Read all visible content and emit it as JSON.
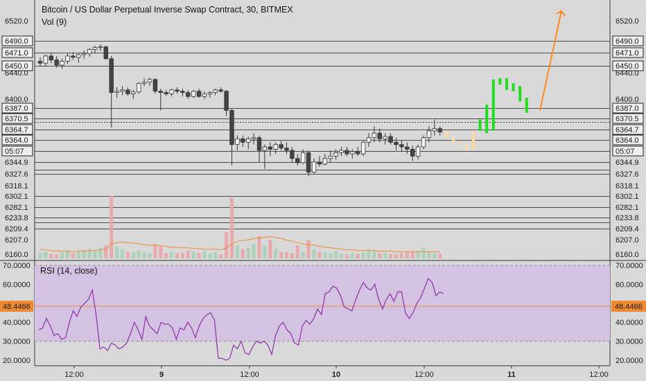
{
  "header": {
    "title": "Bitcoin / US Dollar Perpetual Inverse Swap Contract, 30, BITMEX",
    "volume_label": "Vol (9)",
    "rsi_label": "RSI (14, close)"
  },
  "chart_data": [
    {
      "type": "candlestick",
      "title": "Bitcoin / US Dollar Perpetual Inverse Swap Contract, 30, BITMEX",
      "x_ticks": [
        "12:00",
        "9",
        "12:00",
        "10",
        "12:00",
        "11",
        "12:00"
      ],
      "price_axis_labels": [
        "6520.0",
        "6490.0",
        "6471.0",
        "6450.0",
        "6440.0",
        "6400.0",
        "6387.0",
        "6370.5",
        "6364.7",
        "6364.0",
        "05:07",
        "6344.9",
        "6327.6",
        "6318.1",
        "6302.1",
        "6282.1",
        "6233.8",
        "6209.4",
        "6207.0",
        "6160.0"
      ],
      "horizontal_levels": [
        6490.0,
        6471.0,
        6450.0,
        6387.0,
        6370.5,
        6364.7,
        6364.0,
        6344.9,
        6327.6,
        6302.1,
        6282.1,
        6233.8,
        6209.4
      ],
      "current_price": 6370.5,
      "countdown": "05:07",
      "candles": [
        {
          "o": 6458,
          "h": 6464,
          "l": 6450,
          "c": 6455
        },
        {
          "o": 6455,
          "h": 6468,
          "l": 6450,
          "c": 6466
        },
        {
          "o": 6466,
          "h": 6470,
          "l": 6455,
          "c": 6460
        },
        {
          "o": 6460,
          "h": 6466,
          "l": 6448,
          "c": 6452
        },
        {
          "o": 6452,
          "h": 6462,
          "l": 6446,
          "c": 6458
        },
        {
          "o": 6458,
          "h": 6470,
          "l": 6454,
          "c": 6466
        },
        {
          "o": 6466,
          "h": 6472,
          "l": 6460,
          "c": 6464
        },
        {
          "o": 6464,
          "h": 6470,
          "l": 6456,
          "c": 6468
        },
        {
          "o": 6468,
          "h": 6474,
          "l": 6462,
          "c": 6470
        },
        {
          "o": 6470,
          "h": 6478,
          "l": 6465,
          "c": 6476
        },
        {
          "o": 6476,
          "h": 6482,
          "l": 6470,
          "c": 6479
        },
        {
          "o": 6479,
          "h": 6484,
          "l": 6474,
          "c": 6480
        },
        {
          "o": 6480,
          "h": 6482,
          "l": 6460,
          "c": 6462
        },
        {
          "o": 6462,
          "h": 6466,
          "l": 6375,
          "c": 6410
        },
        {
          "o": 6410,
          "h": 6418,
          "l": 6402,
          "c": 6412
        },
        {
          "o": 6412,
          "h": 6420,
          "l": 6406,
          "c": 6414
        },
        {
          "o": 6414,
          "h": 6418,
          "l": 6405,
          "c": 6408
        },
        {
          "o": 6408,
          "h": 6414,
          "l": 6400,
          "c": 6411
        },
        {
          "o": 6411,
          "h": 6426,
          "l": 6408,
          "c": 6424
        },
        {
          "o": 6424,
          "h": 6432,
          "l": 6420,
          "c": 6426
        },
        {
          "o": 6426,
          "h": 6433,
          "l": 6420,
          "c": 6430
        },
        {
          "o": 6430,
          "h": 6432,
          "l": 6408,
          "c": 6412
        },
        {
          "o": 6412,
          "h": 6416,
          "l": 6390,
          "c": 6410
        },
        {
          "o": 6410,
          "h": 6414,
          "l": 6405,
          "c": 6408
        },
        {
          "o": 6408,
          "h": 6416,
          "l": 6404,
          "c": 6414
        },
        {
          "o": 6414,
          "h": 6418,
          "l": 6408,
          "c": 6412
        },
        {
          "o": 6412,
          "h": 6416,
          "l": 6404,
          "c": 6410
        },
        {
          "o": 6410,
          "h": 6414,
          "l": 6400,
          "c": 6404
        },
        {
          "o": 6404,
          "h": 6414,
          "l": 6402,
          "c": 6412
        },
        {
          "o": 6412,
          "h": 6416,
          "l": 6402,
          "c": 6404
        },
        {
          "o": 6404,
          "h": 6412,
          "l": 6400,
          "c": 6408
        },
        {
          "o": 6408,
          "h": 6412,
          "l": 6402,
          "c": 6410
        },
        {
          "o": 6410,
          "h": 6416,
          "l": 6406,
          "c": 6414
        },
        {
          "o": 6414,
          "h": 6418,
          "l": 6410,
          "c": 6412
        },
        {
          "o": 6412,
          "h": 6414,
          "l": 6385,
          "c": 6390
        },
        {
          "o": 6390,
          "h": 6392,
          "l": 6340,
          "c": 6360
        },
        {
          "o": 6360,
          "h": 6368,
          "l": 6355,
          "c": 6365
        },
        {
          "o": 6365,
          "h": 6368,
          "l": 6358,
          "c": 6362
        },
        {
          "o": 6362,
          "h": 6367,
          "l": 6356,
          "c": 6365
        },
        {
          "o": 6365,
          "h": 6370,
          "l": 6360,
          "c": 6366
        },
        {
          "o": 6366,
          "h": 6368,
          "l": 6345,
          "c": 6355
        },
        {
          "o": 6355,
          "h": 6360,
          "l": 6335,
          "c": 6358
        },
        {
          "o": 6358,
          "h": 6362,
          "l": 6350,
          "c": 6356
        },
        {
          "o": 6356,
          "h": 6362,
          "l": 6352,
          "c": 6360
        },
        {
          "o": 6360,
          "h": 6363,
          "l": 6355,
          "c": 6357
        },
        {
          "o": 6357,
          "h": 6362,
          "l": 6352,
          "c": 6355
        },
        {
          "o": 6355,
          "h": 6358,
          "l": 6345,
          "c": 6348
        },
        {
          "o": 6348,
          "h": 6352,
          "l": 6340,
          "c": 6344
        },
        {
          "o": 6344,
          "h": 6356,
          "l": 6342,
          "c": 6353
        },
        {
          "o": 6353,
          "h": 6355,
          "l": 6325,
          "c": 6330
        },
        {
          "o": 6330,
          "h": 6348,
          "l": 6328,
          "c": 6345
        },
        {
          "o": 6345,
          "h": 6350,
          "l": 6338,
          "c": 6342
        },
        {
          "o": 6342,
          "h": 6352,
          "l": 6340,
          "c": 6348
        },
        {
          "o": 6348,
          "h": 6355,
          "l": 6345,
          "c": 6350
        },
        {
          "o": 6350,
          "h": 6356,
          "l": 6347,
          "c": 6353
        },
        {
          "o": 6353,
          "h": 6358,
          "l": 6350,
          "c": 6355
        },
        {
          "o": 6355,
          "h": 6358,
          "l": 6350,
          "c": 6352
        },
        {
          "o": 6352,
          "h": 6356,
          "l": 6348,
          "c": 6354
        },
        {
          "o": 6354,
          "h": 6358,
          "l": 6350,
          "c": 6352
        },
        {
          "o": 6352,
          "h": 6364,
          "l": 6350,
          "c": 6362
        },
        {
          "o": 6362,
          "h": 6370,
          "l": 6358,
          "c": 6366
        },
        {
          "o": 6366,
          "h": 6376,
          "l": 6362,
          "c": 6370
        },
        {
          "o": 6370,
          "h": 6374,
          "l": 6362,
          "c": 6365
        },
        {
          "o": 6365,
          "h": 6370,
          "l": 6360,
          "c": 6367
        },
        {
          "o": 6367,
          "h": 6370,
          "l": 6360,
          "c": 6362
        },
        {
          "o": 6362,
          "h": 6366,
          "l": 6355,
          "c": 6360
        },
        {
          "o": 6360,
          "h": 6364,
          "l": 6354,
          "c": 6358
        },
        {
          "o": 6358,
          "h": 6362,
          "l": 6352,
          "c": 6356
        },
        {
          "o": 6356,
          "h": 6359,
          "l": 6346,
          "c": 6350
        },
        {
          "o": 6350,
          "h": 6360,
          "l": 6347,
          "c": 6358
        },
        {
          "o": 6358,
          "h": 6368,
          "l": 6356,
          "c": 6366
        },
        {
          "o": 6366,
          "h": 6376,
          "l": 6362,
          "c": 6372
        },
        {
          "o": 6372,
          "h": 6382,
          "l": 6368,
          "c": 6374
        },
        {
          "o": 6374,
          "h": 6376,
          "l": 6368,
          "c": 6371
        }
      ],
      "projection_bars": [
        {
          "o": 6372,
          "h": 6374,
          "l": 6364,
          "c": 6366,
          "color": "#ffd9a0"
        },
        {
          "o": 6366,
          "h": 6370,
          "l": 6360,
          "c": 6362,
          "color": "#ffd9a0"
        },
        {
          "o": 6362,
          "h": 6368,
          "l": 6356,
          "c": 6360,
          "color": "#ffd9a0"
        },
        {
          "o": 6360,
          "h": 6366,
          "l": 6352,
          "c": 6355,
          "color": "#ffd9a0"
        },
        {
          "o": 6356,
          "h": 6375,
          "l": 6355,
          "c": 6372,
          "color": "#ffd9a0"
        },
        {
          "o": 6372,
          "h": 6385,
          "l": 6370,
          "c": 6382,
          "color": "#22dd22"
        },
        {
          "o": 6370,
          "h": 6398,
          "l": 6370,
          "c": 6395,
          "color": "#22dd22"
        },
        {
          "o": 6372,
          "h": 6433,
          "l": 6370,
          "c": 6430,
          "color": "#22dd22"
        },
        {
          "o": 6432,
          "h": 6432,
          "l": 6420,
          "c": 6422,
          "color": "#22dd22"
        },
        {
          "o": 6432,
          "h": 6432,
          "l": 6412,
          "c": 6414,
          "color": "#22dd22"
        },
        {
          "o": 6424,
          "h": 6424,
          "l": 6410,
          "c": 6412,
          "color": "#22dd22"
        },
        {
          "o": 6420,
          "h": 6420,
          "l": 6396,
          "c": 6398,
          "color": "#22dd22"
        },
        {
          "o": 6402,
          "h": 6402,
          "l": 6386,
          "c": 6388,
          "color": "#22dd22"
        }
      ],
      "arrow": {
        "from_price": 6390,
        "to_price": 6535,
        "color": "#ff8c1a"
      },
      "volume": [
        {
          "v": 8,
          "up": true
        },
        {
          "v": 10,
          "up": true
        },
        {
          "v": 7,
          "up": false
        },
        {
          "v": 6,
          "up": false
        },
        {
          "v": 9,
          "up": true
        },
        {
          "v": 12,
          "up": true
        },
        {
          "v": 8,
          "up": false
        },
        {
          "v": 10,
          "up": true
        },
        {
          "v": 12,
          "up": true
        },
        {
          "v": 14,
          "up": true
        },
        {
          "v": 11,
          "up": true
        },
        {
          "v": 16,
          "up": true
        },
        {
          "v": 20,
          "up": false
        },
        {
          "v": 95,
          "up": false
        },
        {
          "v": 18,
          "up": true
        },
        {
          "v": 14,
          "up": true
        },
        {
          "v": 10,
          "up": false
        },
        {
          "v": 9,
          "up": true
        },
        {
          "v": 12,
          "up": true
        },
        {
          "v": 10,
          "up": true
        },
        {
          "v": 8,
          "up": true
        },
        {
          "v": 22,
          "up": false
        },
        {
          "v": 18,
          "up": false
        },
        {
          "v": 8,
          "up": false
        },
        {
          "v": 10,
          "up": true
        },
        {
          "v": 8,
          "up": false
        },
        {
          "v": 9,
          "up": false
        },
        {
          "v": 12,
          "up": false
        },
        {
          "v": 10,
          "up": true
        },
        {
          "v": 8,
          "up": false
        },
        {
          "v": 11,
          "up": true
        },
        {
          "v": 7,
          "up": true
        },
        {
          "v": 9,
          "up": true
        },
        {
          "v": 6,
          "up": false
        },
        {
          "v": 40,
          "up": false
        },
        {
          "v": 92,
          "up": false
        },
        {
          "v": 20,
          "up": true
        },
        {
          "v": 14,
          "up": false
        },
        {
          "v": 16,
          "up": true
        },
        {
          "v": 22,
          "up": true
        },
        {
          "v": 34,
          "up": false
        },
        {
          "v": 20,
          "up": true
        },
        {
          "v": 28,
          "up": false
        },
        {
          "v": 14,
          "up": true
        },
        {
          "v": 10,
          "up": false
        },
        {
          "v": 9,
          "up": false
        },
        {
          "v": 8,
          "up": false
        },
        {
          "v": 20,
          "up": false
        },
        {
          "v": 10,
          "up": true
        },
        {
          "v": 28,
          "up": false
        },
        {
          "v": 14,
          "up": true
        },
        {
          "v": 10,
          "up": false
        },
        {
          "v": 9,
          "up": true
        },
        {
          "v": 8,
          "up": true
        },
        {
          "v": 11,
          "up": true
        },
        {
          "v": 7,
          "up": true
        },
        {
          "v": 6,
          "up": false
        },
        {
          "v": 8,
          "up": true
        },
        {
          "v": 7,
          "up": false
        },
        {
          "v": 10,
          "up": true
        },
        {
          "v": 14,
          "up": true
        },
        {
          "v": 12,
          "up": true
        },
        {
          "v": 8,
          "up": false
        },
        {
          "v": 9,
          "up": true
        },
        {
          "v": 7,
          "up": false
        },
        {
          "v": 6,
          "up": false
        },
        {
          "v": 8,
          "up": false
        },
        {
          "v": 9,
          "up": false
        },
        {
          "v": 10,
          "up": false
        },
        {
          "v": 12,
          "up": true
        },
        {
          "v": 16,
          "up": true
        },
        {
          "v": 10,
          "up": true
        },
        {
          "v": 8,
          "up": true
        },
        {
          "v": 7,
          "up": false
        }
      ],
      "volume_ma": [
        14,
        13,
        12,
        11,
        11,
        11,
        10,
        11,
        11,
        12,
        12,
        13,
        14,
        22,
        24,
        25,
        24,
        23,
        22,
        21,
        20,
        20,
        19,
        18,
        17,
        17,
        16,
        16,
        15,
        15,
        14,
        14,
        14,
        13,
        16,
        22,
        26,
        27,
        28,
        30,
        31,
        32,
        33,
        32,
        30,
        28,
        26,
        24,
        22,
        21,
        20,
        18,
        17,
        16,
        15,
        14,
        13,
        13,
        12,
        12,
        12,
        12,
        11,
        11,
        11,
        10,
        10,
        10,
        10,
        10,
        10,
        10,
        10,
        10
      ],
      "rsi": {
        "y_axis_labels": [
          "70.0000",
          "60.0000",
          "50.0000",
          "40.0000",
          "30.0000",
          "20.0000"
        ],
        "upper": 70,
        "lower": 30,
        "current": 48.4466,
        "current_label": "48.4466",
        "values": [
          36,
          37,
          42,
          38,
          33,
          34,
          31,
          32,
          40,
          46,
          43,
          48,
          50,
          52,
          57,
          44,
          26,
          27,
          25,
          29,
          28,
          26,
          27,
          29,
          34,
          40,
          36,
          31,
          43,
          38,
          36,
          34,
          40,
          39,
          39,
          37,
          31,
          37,
          36,
          40,
          37,
          32,
          38,
          42,
          44,
          45,
          41,
          21,
          21,
          20,
          21,
          28,
          26,
          30,
          24,
          23,
          27,
          30,
          29,
          30,
          28,
          23,
          33,
          38,
          40,
          36,
          34,
          29,
          28,
          38,
          41,
          39,
          42,
          47,
          44,
          55,
          56,
          59,
          58,
          54,
          48,
          47,
          46,
          52,
          57,
          61,
          58,
          57,
          60,
          52,
          47,
          52,
          55,
          51,
          56,
          56
        ],
        "post": [
          45,
          42,
          45,
          50,
          53,
          58,
          63,
          61,
          54,
          56,
          55
        ]
      }
    }
  ]
}
